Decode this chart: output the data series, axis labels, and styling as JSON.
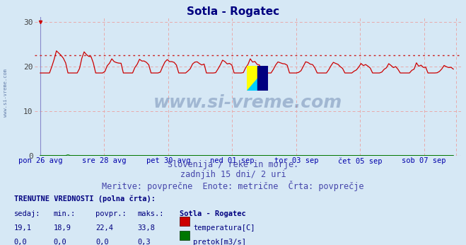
{
  "title": "Sotla - Rogatec",
  "title_color": "#000080",
  "title_fontsize": 11,
  "background_color": "#d6e8f5",
  "plot_bg_color": "#d6e8f5",
  "ylim": [
    0,
    31
  ],
  "yticks": [
    0,
    10,
    20,
    30
  ],
  "avg_temp": 22.4,
  "avg_line_color": "#cc2222",
  "temp_line_color": "#cc0000",
  "flow_line_color": "#007700",
  "grid_color": "#e8aaaa",
  "xlabel_color": "#0000aa",
  "watermark_text": "www.si-vreme.com",
  "watermark_color": "#1a3a7a",
  "watermark_alpha": 0.28,
  "subtitle1": "Slovenija / reke in morje.",
  "subtitle2": "zadnjih 15 dni/ 2 uri",
  "subtitle3": "Meritve: povprečne  Enote: metrične  Črta: povprečje",
  "subtitle_color": "#4444aa",
  "subtitle_fontsize": 8.5,
  "info_title": "TRENUTNE VREDNOSTI (polna črta):",
  "col_headers": [
    "sedaj:",
    "min.:",
    "povpr.:",
    "maks.:",
    "Sotla - Rogatec"
  ],
  "row1_values": [
    "19,1",
    "18,9",
    "22,4",
    "33,8"
  ],
  "row1_label": "temperatura[C]",
  "row1_color": "#cc0000",
  "row2_values": [
    "0,0",
    "0,0",
    "0,0",
    "0,3"
  ],
  "row2_label": "pretok[m3/s]",
  "row2_color": "#007700",
  "xtick_labels": [
    "pon 26 avg",
    "sre 28 avg",
    "pet 30 avg",
    "ned 01 sep",
    "tor 03 sep",
    "čet 05 sep",
    "sob 07 sep"
  ],
  "xtick_positions": [
    0,
    24,
    48,
    72,
    96,
    120,
    144
  ],
  "n_points": 180,
  "logo_yellow": "#ffff00",
  "logo_cyan": "#00ccff",
  "logo_navy": "#000080"
}
